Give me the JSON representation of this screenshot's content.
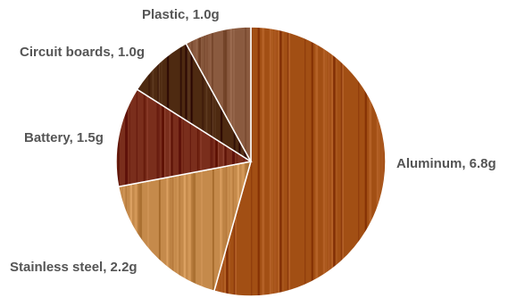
{
  "chart_data": {
    "type": "pie",
    "title": "",
    "start_angle_deg": 0,
    "direction": "clockwise",
    "slices": [
      {
        "label": "Aluminum, 6.8g",
        "value": 6.8,
        "color": "#a24f14",
        "texture": "wood-grain"
      },
      {
        "label": "Stainless steel, 2.2g",
        "value": 2.2,
        "color": "#c58a4b",
        "texture": "wood-grain"
      },
      {
        "label": "Battery, 1.5g",
        "value": 1.5,
        "color": "#7a2e1c",
        "texture": "wood-grain"
      },
      {
        "label": "Circuit boards, 1.0g",
        "value": 1.0,
        "color": "#4e2a11",
        "texture": "wood-grain"
      },
      {
        "label": "Plastic, 1.0g",
        "value": 1.0,
        "color": "#8a5a3f",
        "texture": "wood-grain"
      }
    ],
    "label_color": "#555555",
    "slice_border_color": "#ffffff"
  }
}
